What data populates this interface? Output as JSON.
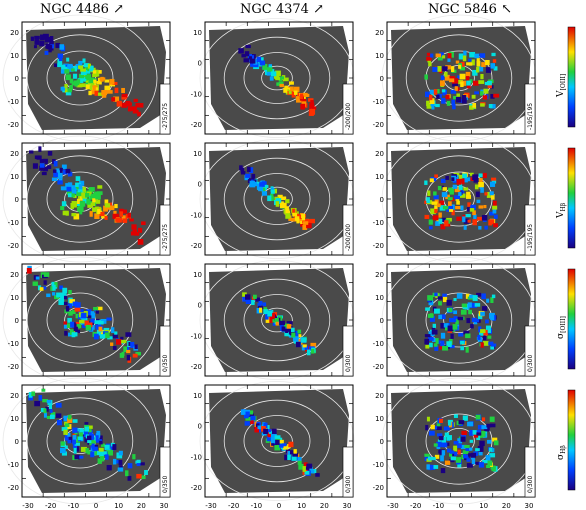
{
  "columns": [
    {
      "title": "NGC 4486",
      "arrow": "north-east-arrow-icon"
    },
    {
      "title": "NGC 4374",
      "arrow": "north-east-arrow-icon"
    },
    {
      "title": "NGC 5846",
      "arrow": "north-east-arrow-icon"
    }
  ],
  "rows": [
    {
      "label": "V",
      "sub": "[OIII]",
      "cbar": "rainbow"
    },
    {
      "label": "V",
      "sub": "Hβ",
      "cbar": "rainbow"
    },
    {
      "label": "σ",
      "sub": "[OIII]",
      "cbar": "rainbow"
    },
    {
      "label": "σ",
      "sub": "Hβ",
      "cbar": "rainbow"
    }
  ],
  "ranges": [
    [
      "-275/275",
      "-200/200",
      "-195/195"
    ],
    [
      "-275/275",
      "-200/200",
      "-195/195"
    ],
    [
      "0/350",
      "0/300",
      "0/300"
    ],
    [
      "0/350",
      "0/300",
      "0/300"
    ]
  ],
  "yticks": [
    [
      "20",
      "10",
      "0",
      "-10",
      "-20"
    ],
    [
      "10",
      "0",
      "-10",
      "-20"
    ],
    [
      "20",
      "10",
      "0",
      "-10",
      "-20"
    ]
  ],
  "xticks": [
    [
      "-30",
      "-20",
      "-10",
      "0",
      "10",
      "20",
      "30"
    ],
    [
      "-30",
      "-20",
      "-10",
      "0",
      "10",
      "20",
      "30"
    ],
    [
      "-30",
      "-20",
      "-10",
      "0",
      "10",
      "20",
      "30"
    ]
  ],
  "colors": {
    "background": "#4a4a4a",
    "contour": "#e8e8e8",
    "frame": "#000000"
  }
}
